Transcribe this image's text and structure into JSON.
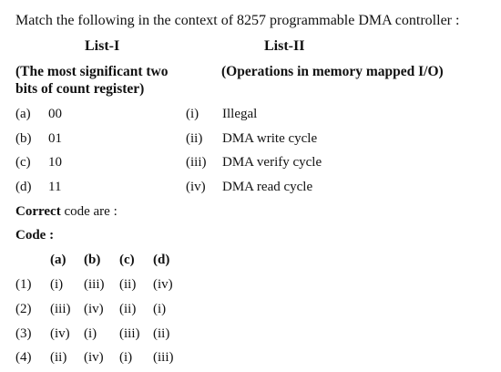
{
  "question": "Match the following in the context of 8257 programmable DMA controller :",
  "list1": {
    "heading": "List-I",
    "subtitle_line1": "(The most significant two",
    "subtitle_line2": "bits of count register)",
    "items": [
      {
        "label": "(a)",
        "value": "00"
      },
      {
        "label": "(b)",
        "value": "01"
      },
      {
        "label": "(c)",
        "value": "10"
      },
      {
        "label": "(d)",
        "value": "11"
      }
    ]
  },
  "list2": {
    "heading": "List-II",
    "subtitle": "(Operations in memory mapped I/O)",
    "items": [
      {
        "label": "(i)",
        "value": "Illegal"
      },
      {
        "label": "(ii)",
        "value": "DMA write cycle"
      },
      {
        "label": "(iii)",
        "value": "DMA verify cycle"
      },
      {
        "label": "(iv)",
        "value": "DMA read cycle"
      }
    ]
  },
  "correct_code_bold": "Correct",
  "correct_code_rest": " code are :",
  "code_label": "Code :",
  "code_columns": [
    "(a)",
    "(b)",
    "(c)",
    "(d)"
  ],
  "options": [
    {
      "num": "(1)",
      "a": "(i)",
      "b": "(iii)",
      "c": "(ii)",
      "d": "(iv)"
    },
    {
      "num": "(2)",
      "a": "(iii)",
      "b": "(iv)",
      "c": "(ii)",
      "d": "(i)"
    },
    {
      "num": "(3)",
      "a": "(iv)",
      "b": "(i)",
      "c": "(iii)",
      "d": "(ii)"
    },
    {
      "num": "(4)",
      "a": "(ii)",
      "b": "(iv)",
      "c": "(i)",
      "d": "(iii)"
    }
  ]
}
